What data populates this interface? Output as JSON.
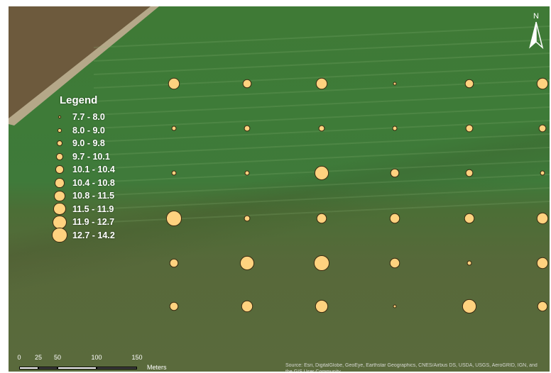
{
  "map": {
    "legend": {
      "title": "Legend",
      "entries": [
        {
          "label": "7.7 - 8.0",
          "class": 1
        },
        {
          "label": "8.0 - 9.0",
          "class": 2
        },
        {
          "label": "9.0 - 9.8",
          "class": 3
        },
        {
          "label": "9.7 - 10.1",
          "class": 4
        },
        {
          "label": "10.1 - 10.4",
          "class": 5
        },
        {
          "label": "10.4 - 10.8",
          "class": 6
        },
        {
          "label": "10.8 - 11.5",
          "class": 7
        },
        {
          "label": "11.5 - 11.9",
          "class": 8
        },
        {
          "label": "11.9 - 12.7",
          "class": 9
        },
        {
          "label": "12.7 - 14.2",
          "class": 10
        }
      ]
    },
    "symbol_color": "#ffd27f",
    "symbol_outline": "#3a2a10",
    "sample_grid_classes": [
      [
        7,
        5,
        7,
        1,
        5,
        7
      ],
      [
        2,
        3,
        3,
        2,
        4,
        4
      ],
      [
        2,
        2,
        9,
        5,
        4,
        2
      ],
      [
        10,
        3,
        6,
        6,
        6,
        7
      ],
      [
        5,
        9,
        10,
        6,
        2,
        7
      ],
      [
        5,
        7,
        8,
        1,
        9,
        6
      ]
    ],
    "north_arrow": {
      "label": "N"
    },
    "scale_bar": {
      "ticks": [
        "0",
        "25",
        "50",
        "100",
        "150"
      ],
      "units": "Meters"
    },
    "attribution": "Source: Esri, DigitalGlobe, GeoEye, Earthstar Geographics, CNES/Airbus DS, USDA, USGS, AeroGRID, IGN, and the GIS User Community"
  }
}
